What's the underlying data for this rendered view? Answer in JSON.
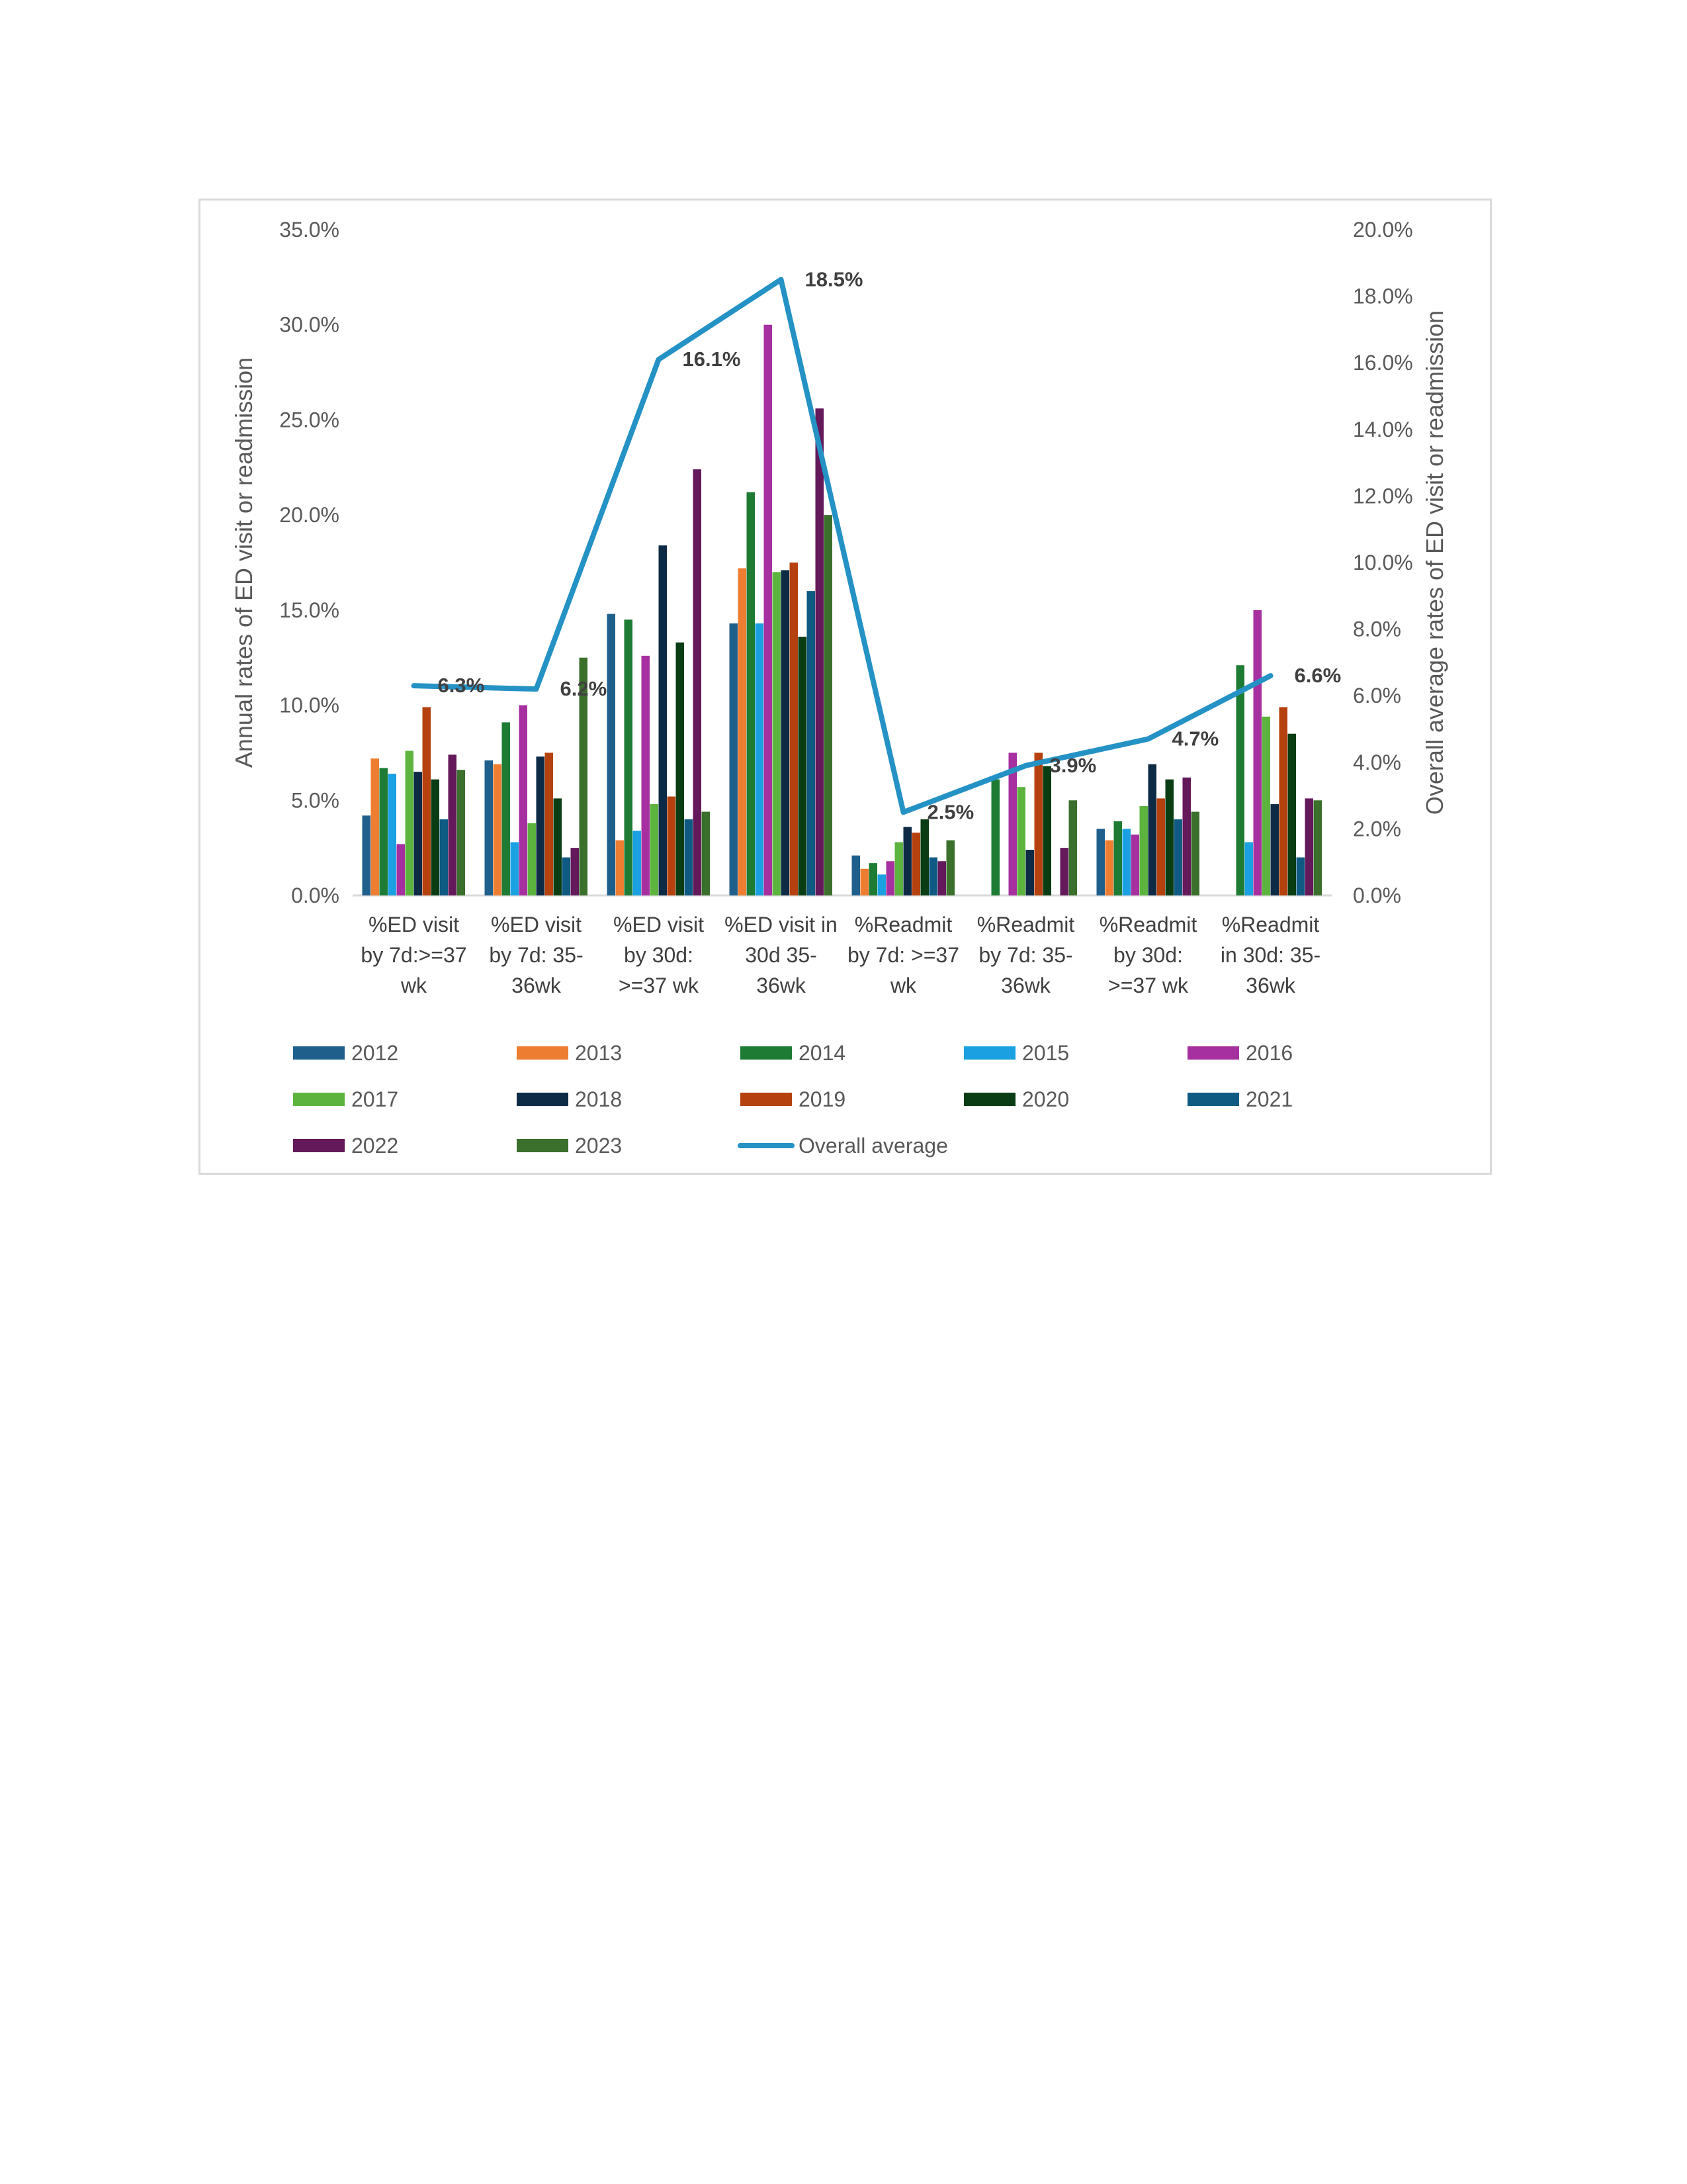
{
  "chart_data": {
    "type": "bar",
    "title": "",
    "ylabel": "Annual rates of ED visit or readmission",
    "y2label": "Overall average rates of ED visit or readmission",
    "ylim": [
      0,
      35
    ],
    "y2lim": [
      0,
      20
    ],
    "yticks": [
      "0.0%",
      "5.0%",
      "10.0%",
      "15.0%",
      "20.0%",
      "25.0%",
      "30.0%",
      "35.0%"
    ],
    "y2ticks": [
      "0.0%",
      "2.0%",
      "4.0%",
      "6.0%",
      "8.0%",
      "10.0%",
      "12.0%",
      "14.0%",
      "16.0%",
      "18.0%",
      "20.0%"
    ],
    "categories": [
      [
        "%ED visit",
        "by 7d:>=37",
        "wk"
      ],
      [
        "%ED visit",
        "by 7d: 35-",
        "36wk"
      ],
      [
        "%ED visit",
        "by 30d:",
        ">=37 wk"
      ],
      [
        "%ED visit in",
        "30d 35-",
        "36wk"
      ],
      [
        "%Readmit",
        "by 7d: >=37",
        "wk"
      ],
      [
        "%Readmit",
        "by 7d: 35-",
        "36wk"
      ],
      [
        "%Readmit",
        "by 30d:",
        ">=37 wk"
      ],
      [
        "%Readmit",
        "in 30d: 35-",
        "36wk"
      ]
    ],
    "series": [
      {
        "name": "2012",
        "color": "#1f5f8b",
        "values": [
          4.2,
          7.1,
          14.8,
          14.3,
          2.1,
          0,
          3.5,
          0
        ]
      },
      {
        "name": "2013",
        "color": "#ed7d31",
        "values": [
          7.2,
          6.9,
          2.9,
          17.2,
          1.4,
          0,
          2.9,
          0
        ]
      },
      {
        "name": "2014",
        "color": "#1e7b34",
        "values": [
          6.7,
          9.1,
          14.5,
          21.2,
          1.7,
          6.1,
          3.9,
          12.1
        ]
      },
      {
        "name": "2015",
        "color": "#1ba1e2",
        "values": [
          6.4,
          2.8,
          3.4,
          14.3,
          1.1,
          0,
          3.5,
          2.8
        ]
      },
      {
        "name": "2016",
        "color": "#a6309f",
        "values": [
          2.7,
          10.0,
          12.6,
          30.0,
          1.8,
          7.5,
          3.2,
          15.0
        ]
      },
      {
        "name": "2017",
        "color": "#5cb43f",
        "values": [
          7.6,
          3.8,
          4.8,
          17.0,
          2.8,
          5.7,
          4.7,
          9.4
        ]
      },
      {
        "name": "2018",
        "color": "#0d2b45",
        "values": [
          6.5,
          7.3,
          18.4,
          17.1,
          3.6,
          2.4,
          6.9,
          4.8
        ]
      },
      {
        "name": "2019",
        "color": "#b5410f",
        "values": [
          9.9,
          7.5,
          5.2,
          17.5,
          3.3,
          7.5,
          5.1,
          9.9
        ]
      },
      {
        "name": "2020",
        "color": "#0a3d13",
        "values": [
          6.1,
          5.1,
          13.3,
          13.6,
          4.0,
          6.8,
          6.1,
          8.5
        ]
      },
      {
        "name": "2021",
        "color": "#0e5a82",
        "values": [
          4.0,
          2.0,
          4.0,
          16.0,
          2.0,
          0,
          4.0,
          2.0
        ]
      },
      {
        "name": "2022",
        "color": "#63195a",
        "values": [
          7.4,
          2.5,
          22.4,
          25.6,
          1.8,
          2.5,
          6.2,
          5.1
        ]
      },
      {
        "name": "2023",
        "color": "#3a6f2c",
        "values": [
          6.6,
          12.5,
          4.4,
          20.0,
          2.9,
          5.0,
          4.4,
          5.0
        ]
      }
    ],
    "line": {
      "name": "Overall average",
      "color": "#2492c4",
      "values": [
        6.3,
        6.2,
        16.1,
        18.5,
        2.5,
        3.9,
        4.7,
        6.6
      ],
      "labels": [
        "6.3%",
        "6.2%",
        "16.1%",
        "18.5%",
        "2.5%",
        "3.9%",
        "4.7%",
        "6.6%"
      ]
    },
    "legend_position": "bottom",
    "grid": false
  }
}
